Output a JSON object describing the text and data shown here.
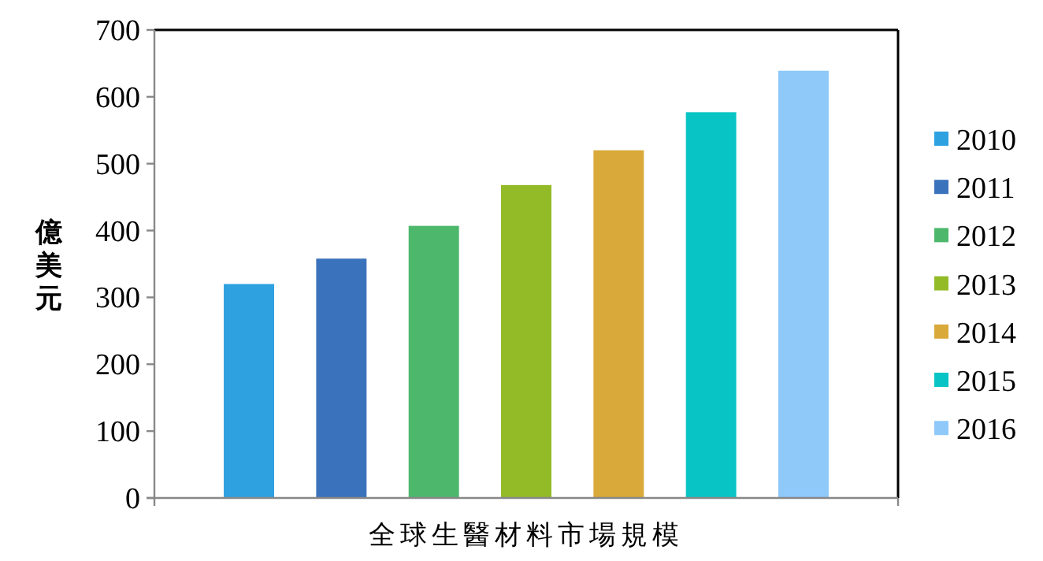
{
  "chart_data": {
    "type": "bar",
    "ylabel": "億美元",
    "categories": [
      "全球生醫材料市場規模"
    ],
    "ylim": [
      0,
      700
    ],
    "yticks": [
      0,
      100,
      200,
      300,
      400,
      500,
      600,
      700
    ],
    "grid": false,
    "legend": "right",
    "series": [
      {
        "name": "2010",
        "color": "#2ea1e0",
        "values": [
          320
        ]
      },
      {
        "name": "2011",
        "color": "#3b72bc",
        "values": [
          358
        ]
      },
      {
        "name": "2012",
        "color": "#4db86b",
        "values": [
          407
        ]
      },
      {
        "name": "2013",
        "color": "#93ba27",
        "values": [
          468
        ]
      },
      {
        "name": "2014",
        "color": "#d9a93a",
        "values": [
          520
        ]
      },
      {
        "name": "2015",
        "color": "#08c4c4",
        "values": [
          577
        ]
      },
      {
        "name": "2016",
        "color": "#8ec9fa",
        "values": [
          639
        ]
      }
    ]
  }
}
